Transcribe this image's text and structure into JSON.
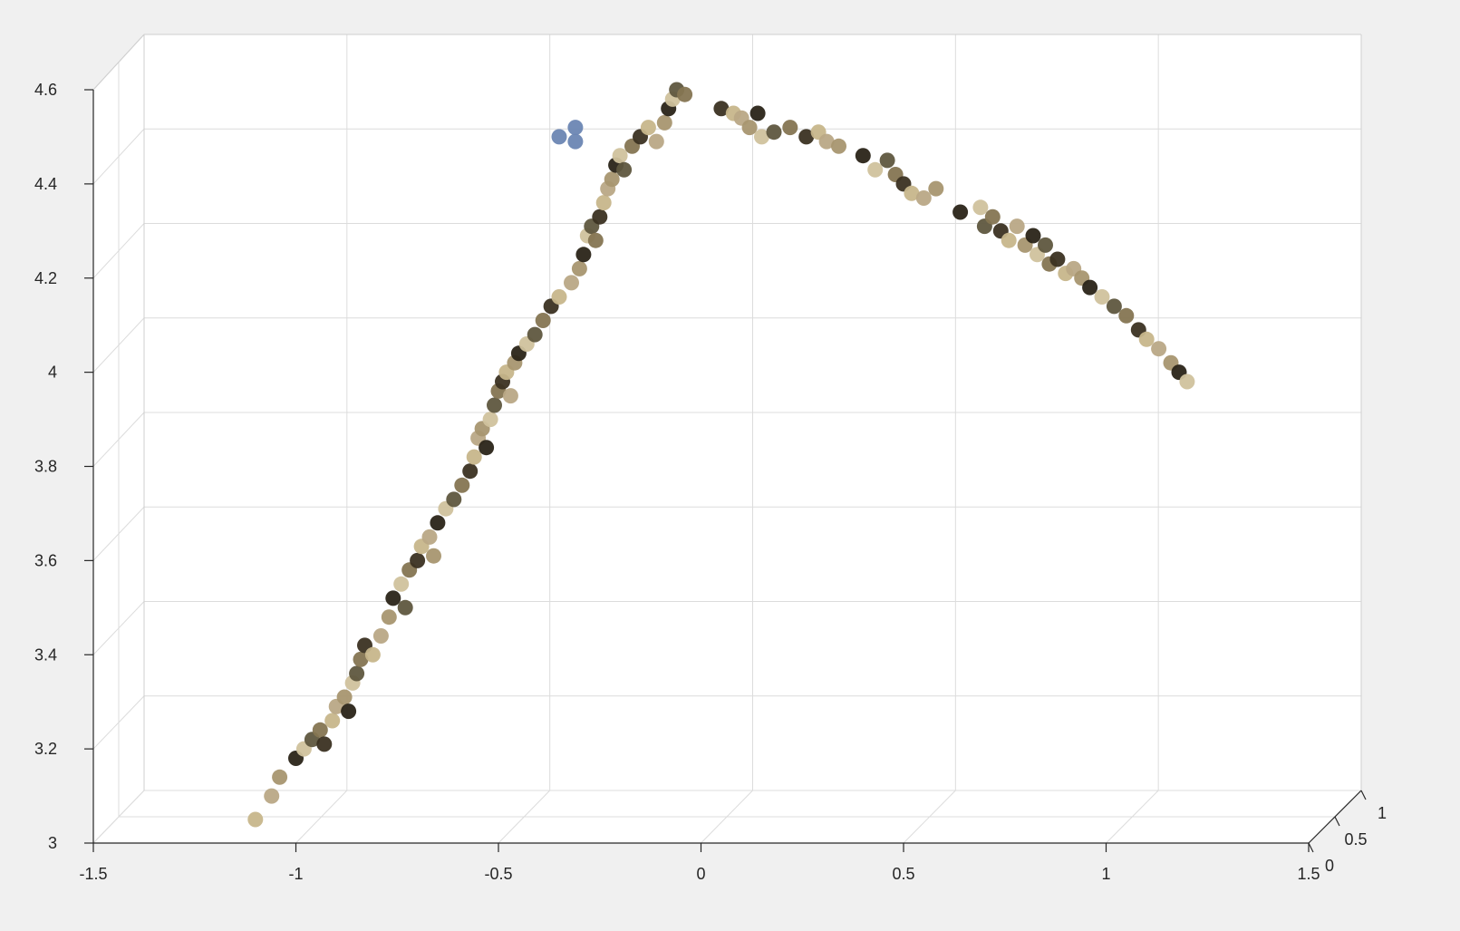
{
  "figure": {
    "background": "#f0f0f0",
    "axes_background": "#ffffff",
    "grid_color": "#dcdcdc",
    "axis_color": "#262626"
  },
  "chart_data": {
    "type": "scatter",
    "dimensions": 3,
    "title": "",
    "xlabel": "",
    "ylabel": "",
    "zlabel": "",
    "xlim": [
      -1.5,
      1.5
    ],
    "ylim": [
      0,
      1
    ],
    "zlim": [
      3,
      4.6
    ],
    "x_ticks": [
      "-1.5",
      "-1",
      "-0.5",
      "0",
      "0.5",
      "1",
      "1.5"
    ],
    "y_ticks": [
      "0",
      "0.5",
      "1"
    ],
    "z_ticks": [
      "3",
      "3.2",
      "3.4",
      "3.6",
      "3.8",
      "4",
      "4.2",
      "4.4",
      "4.6"
    ],
    "grid": true,
    "legend": "none",
    "view": "3-D perspective, nearly front-on (x–z plane facing viewer, y receding)",
    "series": [
      {
        "marker_color": "#6b86b3",
        "points": [
          {
            "x": -0.35,
            "z": 4.5
          },
          {
            "x": -0.31,
            "z": 4.52
          },
          {
            "x": -0.31,
            "z": 4.49
          }
        ]
      },
      {
        "marker_colors": [
          "#b9a886",
          "#857552",
          "#2a2418",
          "#c7b68b",
          "#5f573f",
          "#a89670",
          "#3b3222",
          "#d0c29d"
        ],
        "points": [
          {
            "x": -1.1,
            "z": 3.05
          },
          {
            "x": -1.06,
            "z": 3.1
          },
          {
            "x": -1.04,
            "z": 3.14
          },
          {
            "x": -1.0,
            "z": 3.18
          },
          {
            "x": -0.98,
            "z": 3.2
          },
          {
            "x": -0.96,
            "z": 3.22
          },
          {
            "x": -0.94,
            "z": 3.24
          },
          {
            "x": -0.93,
            "z": 3.21
          },
          {
            "x": -0.91,
            "z": 3.26
          },
          {
            "x": -0.9,
            "z": 3.29
          },
          {
            "x": -0.88,
            "z": 3.31
          },
          {
            "x": -0.87,
            "z": 3.28
          },
          {
            "x": -0.86,
            "z": 3.34
          },
          {
            "x": -0.85,
            "z": 3.36
          },
          {
            "x": -0.84,
            "z": 3.39
          },
          {
            "x": -0.83,
            "z": 3.42
          },
          {
            "x": -0.81,
            "z": 3.4
          },
          {
            "x": -0.79,
            "z": 3.44
          },
          {
            "x": -0.77,
            "z": 3.48
          },
          {
            "x": -0.76,
            "z": 3.52
          },
          {
            "x": -0.74,
            "z": 3.55
          },
          {
            "x": -0.73,
            "z": 3.5
          },
          {
            "x": -0.72,
            "z": 3.58
          },
          {
            "x": -0.7,
            "z": 3.6
          },
          {
            "x": -0.69,
            "z": 3.63
          },
          {
            "x": -0.67,
            "z": 3.65
          },
          {
            "x": -0.66,
            "z": 3.61
          },
          {
            "x": -0.65,
            "z": 3.68
          },
          {
            "x": -0.63,
            "z": 3.71
          },
          {
            "x": -0.61,
            "z": 3.73
          },
          {
            "x": -0.59,
            "z": 3.76
          },
          {
            "x": -0.57,
            "z": 3.79
          },
          {
            "x": -0.56,
            "z": 3.82
          },
          {
            "x": -0.55,
            "z": 3.86
          },
          {
            "x": -0.54,
            "z": 3.88
          },
          {
            "x": -0.53,
            "z": 3.84
          },
          {
            "x": -0.52,
            "z": 3.9
          },
          {
            "x": -0.51,
            "z": 3.93
          },
          {
            "x": -0.5,
            "z": 3.96
          },
          {
            "x": -0.49,
            "z": 3.98
          },
          {
            "x": -0.48,
            "z": 4.0
          },
          {
            "x": -0.47,
            "z": 3.95
          },
          {
            "x": -0.46,
            "z": 4.02
          },
          {
            "x": -0.45,
            "z": 4.04
          },
          {
            "x": -0.43,
            "z": 4.06
          },
          {
            "x": -0.41,
            "z": 4.08
          },
          {
            "x": -0.39,
            "z": 4.11
          },
          {
            "x": -0.37,
            "z": 4.14
          },
          {
            "x": -0.35,
            "z": 4.16
          },
          {
            "x": -0.32,
            "z": 4.19
          },
          {
            "x": -0.3,
            "z": 4.22
          },
          {
            "x": -0.29,
            "z": 4.25
          },
          {
            "x": -0.28,
            "z": 4.29
          },
          {
            "x": -0.27,
            "z": 4.31
          },
          {
            "x": -0.26,
            "z": 4.28
          },
          {
            "x": -0.25,
            "z": 4.33
          },
          {
            "x": -0.24,
            "z": 4.36
          },
          {
            "x": -0.23,
            "z": 4.39
          },
          {
            "x": -0.22,
            "z": 4.41
          },
          {
            "x": -0.21,
            "z": 4.44
          },
          {
            "x": -0.2,
            "z": 4.46
          },
          {
            "x": -0.19,
            "z": 4.43
          },
          {
            "x": -0.17,
            "z": 4.48
          },
          {
            "x": -0.15,
            "z": 4.5
          },
          {
            "x": -0.13,
            "z": 4.52
          },
          {
            "x": -0.11,
            "z": 4.49
          },
          {
            "x": -0.09,
            "z": 4.53
          },
          {
            "x": -0.08,
            "z": 4.56
          },
          {
            "x": -0.07,
            "z": 4.58
          },
          {
            "x": -0.06,
            "z": 4.6
          },
          {
            "x": -0.04,
            "z": 4.59
          },
          {
            "x": 0.05,
            "z": 4.56
          },
          {
            "x": 0.08,
            "z": 4.55
          },
          {
            "x": 0.1,
            "z": 4.54
          },
          {
            "x": 0.12,
            "z": 4.52
          },
          {
            "x": 0.14,
            "z": 4.55
          },
          {
            "x": 0.15,
            "z": 4.5
          },
          {
            "x": 0.18,
            "z": 4.51
          },
          {
            "x": 0.22,
            "z": 4.52
          },
          {
            "x": 0.26,
            "z": 4.5
          },
          {
            "x": 0.29,
            "z": 4.51
          },
          {
            "x": 0.31,
            "z": 4.49
          },
          {
            "x": 0.34,
            "z": 4.48
          },
          {
            "x": 0.4,
            "z": 4.46
          },
          {
            "x": 0.43,
            "z": 4.43
          },
          {
            "x": 0.46,
            "z": 4.45
          },
          {
            "x": 0.48,
            "z": 4.42
          },
          {
            "x": 0.5,
            "z": 4.4
          },
          {
            "x": 0.52,
            "z": 4.38
          },
          {
            "x": 0.55,
            "z": 4.37
          },
          {
            "x": 0.58,
            "z": 4.39
          },
          {
            "x": 0.64,
            "z": 4.34
          },
          {
            "x": 0.69,
            "z": 4.35
          },
          {
            "x": 0.7,
            "z": 4.31
          },
          {
            "x": 0.72,
            "z": 4.33
          },
          {
            "x": 0.74,
            "z": 4.3
          },
          {
            "x": 0.76,
            "z": 4.28
          },
          {
            "x": 0.78,
            "z": 4.31
          },
          {
            "x": 0.8,
            "z": 4.27
          },
          {
            "x": 0.82,
            "z": 4.29
          },
          {
            "x": 0.83,
            "z": 4.25
          },
          {
            "x": 0.85,
            "z": 4.27
          },
          {
            "x": 0.86,
            "z": 4.23
          },
          {
            "x": 0.88,
            "z": 4.24
          },
          {
            "x": 0.9,
            "z": 4.21
          },
          {
            "x": 0.92,
            "z": 4.22
          },
          {
            "x": 0.94,
            "z": 4.2
          },
          {
            "x": 0.96,
            "z": 4.18
          },
          {
            "x": 0.99,
            "z": 4.16
          },
          {
            "x": 1.02,
            "z": 4.14
          },
          {
            "x": 1.05,
            "z": 4.12
          },
          {
            "x": 1.08,
            "z": 4.09
          },
          {
            "x": 1.1,
            "z": 4.07
          },
          {
            "x": 1.13,
            "z": 4.05
          },
          {
            "x": 1.16,
            "z": 4.02
          },
          {
            "x": 1.18,
            "z": 4.0
          },
          {
            "x": 1.2,
            "z": 3.98
          }
        ]
      }
    ]
  }
}
